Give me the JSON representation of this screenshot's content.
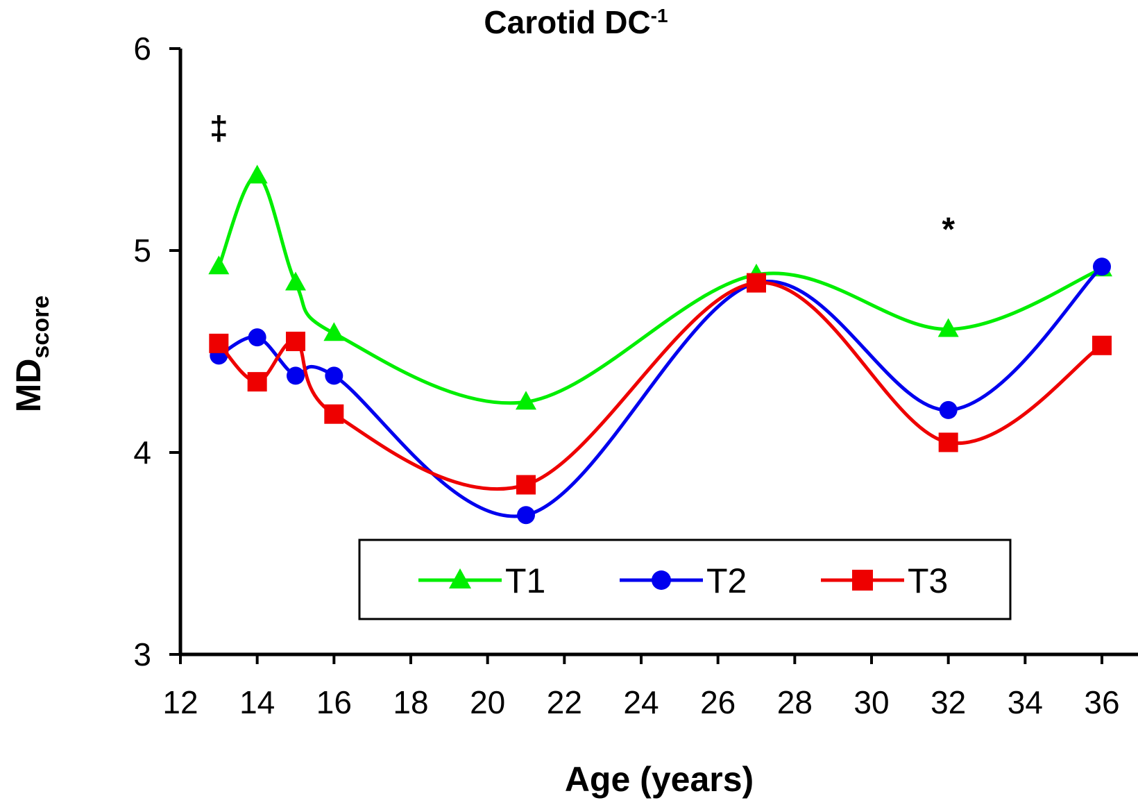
{
  "chart_data": {
    "type": "line",
    "title": "Carotid DC",
    "title_superscript": "-1",
    "xlabel": "Age (years)",
    "ylabel": "MD",
    "ylabel_subscript": "score",
    "xlim": [
      12,
      36
    ],
    "ylim": [
      3,
      6
    ],
    "xticks": [
      12,
      14,
      16,
      18,
      20,
      22,
      24,
      26,
      28,
      30,
      32,
      34,
      36
    ],
    "yticks": [
      3,
      4,
      5,
      6
    ],
    "grid": false,
    "legend_position": "bottom-center",
    "x": [
      13,
      14,
      15,
      16,
      21,
      27,
      32,
      36
    ],
    "series": [
      {
        "name": "T1",
        "color": "#00ee00",
        "marker": "triangle",
        "values": [
          4.92,
          5.37,
          4.84,
          4.59,
          4.25,
          4.88,
          4.61,
          4.91
        ]
      },
      {
        "name": "T2",
        "color": "#0000ee",
        "marker": "circle",
        "values": [
          4.48,
          4.57,
          4.38,
          4.38,
          3.69,
          4.84,
          4.21,
          4.92
        ]
      },
      {
        "name": "T3",
        "color": "#ee0000",
        "marker": "square",
        "values": [
          4.54,
          4.35,
          4.55,
          4.19,
          3.84,
          4.84,
          4.05,
          4.53
        ]
      }
    ],
    "annotations": [
      {
        "text": "‡",
        "x": 13,
        "y": 5.55
      },
      {
        "text": "*",
        "x": 32,
        "y": 5.05
      }
    ]
  }
}
